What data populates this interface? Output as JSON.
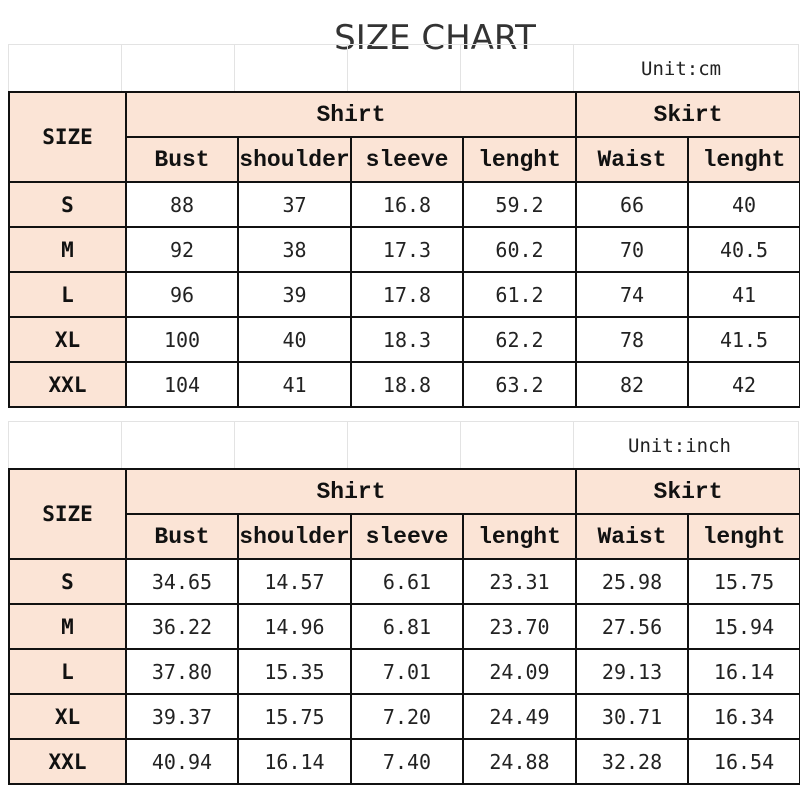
{
  "title": "SIZE CHART",
  "colors": {
    "header_bg": "#fbe4d6",
    "border": "#111111"
  },
  "headers": {
    "size": "SIZE",
    "shirt": "Shirt",
    "skirt": "Skirt",
    "columns": [
      "Bust",
      "shoulder",
      "sleeve",
      "lenght",
      "Waist",
      "lenght"
    ]
  },
  "tables": [
    {
      "unit": "Unit:cm",
      "rows": [
        [
          "S",
          "88",
          "37",
          "16.8",
          "59.2",
          "66",
          "40"
        ],
        [
          "M",
          "92",
          "38",
          "17.3",
          "60.2",
          "70",
          "40.5"
        ],
        [
          "L",
          "96",
          "39",
          "17.8",
          "61.2",
          "74",
          "41"
        ],
        [
          "XL",
          "100",
          "40",
          "18.3",
          "62.2",
          "78",
          "41.5"
        ],
        [
          "XXL",
          "104",
          "41",
          "18.8",
          "63.2",
          "82",
          "42"
        ]
      ]
    },
    {
      "unit": "Unit:inch",
      "rows": [
        [
          "S",
          "34.65",
          "14.57",
          "6.61",
          "23.31",
          "25.98",
          "15.75"
        ],
        [
          "M",
          "36.22",
          "14.96",
          "6.81",
          "23.70",
          "27.56",
          "15.94"
        ],
        [
          "L",
          "37.80",
          "15.35",
          "7.01",
          "24.09",
          "29.13",
          "16.14"
        ],
        [
          "XL",
          "39.37",
          "15.75",
          "7.20",
          "24.49",
          "30.71",
          "16.34"
        ],
        [
          "XXL",
          "40.94",
          "16.14",
          "7.40",
          "24.88",
          "32.28",
          "16.54"
        ]
      ]
    }
  ]
}
